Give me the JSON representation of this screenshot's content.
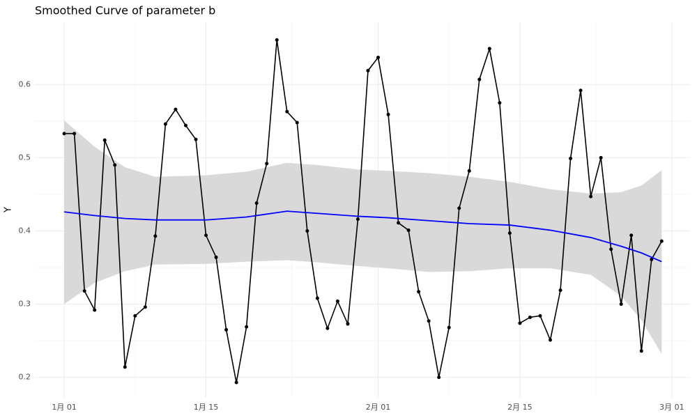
{
  "chart_data": {
    "type": "line",
    "title": "Smoothed Curve of parameter b",
    "y_label": "Y",
    "x": [
      0,
      1,
      2,
      3,
      4,
      5,
      6,
      7,
      8,
      9,
      10,
      11,
      12,
      13,
      14,
      15,
      16,
      17,
      18,
      19,
      20,
      21,
      22,
      23,
      24,
      25,
      26,
      27,
      28,
      29,
      30,
      31,
      32,
      33,
      34,
      35,
      36,
      37,
      38,
      39,
      40,
      41,
      42,
      43,
      44,
      45,
      46,
      47,
      48,
      49,
      50,
      51,
      52,
      53,
      54,
      55,
      56,
      57,
      58,
      59
    ],
    "series": [
      {
        "color": "#000000",
        "values": [
          0.533,
          0.533,
          0.318,
          0.292,
          0.524,
          0.49,
          0.214,
          0.284,
          0.296,
          0.393,
          0.546,
          0.566,
          0.544,
          0.525,
          0.394,
          0.364,
          0.265,
          0.193,
          0.269,
          0.438,
          0.492,
          0.661,
          0.563,
          0.548,
          0.4,
          0.308,
          0.267,
          0.304,
          0.273,
          0.416,
          0.619,
          0.637,
          0.559,
          0.411,
          0.401,
          0.317,
          0.277,
          0.2,
          0.268,
          0.431,
          0.482,
          0.607,
          0.649,
          0.575,
          0.397,
          0.274,
          0.282,
          0.284,
          0.251,
          0.319,
          0.499,
          0.592,
          0.447,
          0.5,
          0.375,
          0.3,
          0.394,
          0.236,
          0.361,
          0.386
        ]
      }
    ],
    "smooth": {
      "color": "#0000ff",
      "band_color": "#d9d9d9",
      "x": [
        0,
        3,
        6,
        9,
        14,
        18,
        22,
        25,
        29,
        32,
        36,
        40,
        44,
        48,
        52,
        55,
        57,
        59
      ],
      "values": [
        0.426,
        0.421,
        0.417,
        0.415,
        0.415,
        0.419,
        0.427,
        0.424,
        0.42,
        0.418,
        0.414,
        0.41,
        0.408,
        0.401,
        0.391,
        0.379,
        0.37,
        0.358
      ],
      "lower": [
        0.3,
        0.329,
        0.345,
        0.354,
        0.355,
        0.358,
        0.36,
        0.357,
        0.352,
        0.349,
        0.344,
        0.345,
        0.349,
        0.349,
        0.34,
        0.311,
        0.278,
        0.232
      ],
      "upper": [
        0.551,
        0.515,
        0.487,
        0.474,
        0.476,
        0.481,
        0.493,
        0.49,
        0.484,
        0.482,
        0.479,
        0.474,
        0.467,
        0.457,
        0.451,
        0.453,
        0.462,
        0.483
      ]
    },
    "xlim": [
      -2.9,
      61.8
    ],
    "xticks": [
      {
        "value": 0,
        "label": "1月 01"
      },
      {
        "value": 14,
        "label": "1月 15"
      },
      {
        "value": 31,
        "label": "2月 01"
      },
      {
        "value": 45,
        "label": "2月 15"
      },
      {
        "value": 60,
        "label": "3月 01"
      }
    ],
    "ylim": [
      0.173,
      0.685
    ],
    "yticks": [
      0.2,
      0.3,
      0.4,
      0.5,
      0.6
    ],
    "grid": true
  }
}
